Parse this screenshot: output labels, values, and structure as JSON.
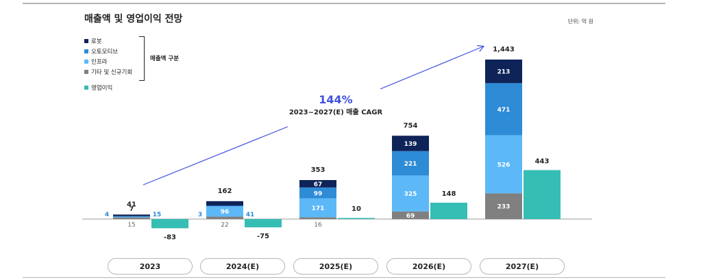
{
  "header": {
    "title": "매출액 및 영업이익 전망",
    "unit": "단위: 억 원"
  },
  "legend": {
    "items": [
      {
        "label": "로봇",
        "color": "#0e2358"
      },
      {
        "label": "오토모티브",
        "color": "#2e8bd6"
      },
      {
        "label": "인프라",
        "color": "#5db8f8"
      },
      {
        "label": "기타 및 신규기회",
        "color": "#808080"
      }
    ],
    "group_label": "매출액 구분",
    "operating_profit": {
      "label": "영업이익",
      "color": "#36bdb4"
    }
  },
  "cagr": {
    "value": "144%",
    "label": "2023~2027(E) 매출 CAGR"
  },
  "chart_data": {
    "type": "bar",
    "categories": [
      "2023",
      "2024(E)",
      "2025(E)",
      "2026(E)",
      "2027(E)"
    ],
    "series": [
      {
        "name": "기타 및 신규기회",
        "values": [
          15,
          22,
          16,
          69,
          233
        ]
      },
      {
        "name": "인프라",
        "values": [
          7,
          96,
          171,
          325,
          526
        ]
      },
      {
        "name": "오토모티브",
        "values": [
          4,
          3,
          99,
          221,
          471
        ]
      },
      {
        "name": "로봇",
        "values": [
          15,
          41,
          67,
          139,
          213
        ]
      },
      {
        "name": "영업이익",
        "values": [
          -83,
          -75,
          10,
          148,
          443
        ]
      }
    ],
    "totals": [
      "41",
      "162",
      "353",
      "754",
      "1,443"
    ],
    "ylim": [
      -90,
      1500
    ]
  }
}
